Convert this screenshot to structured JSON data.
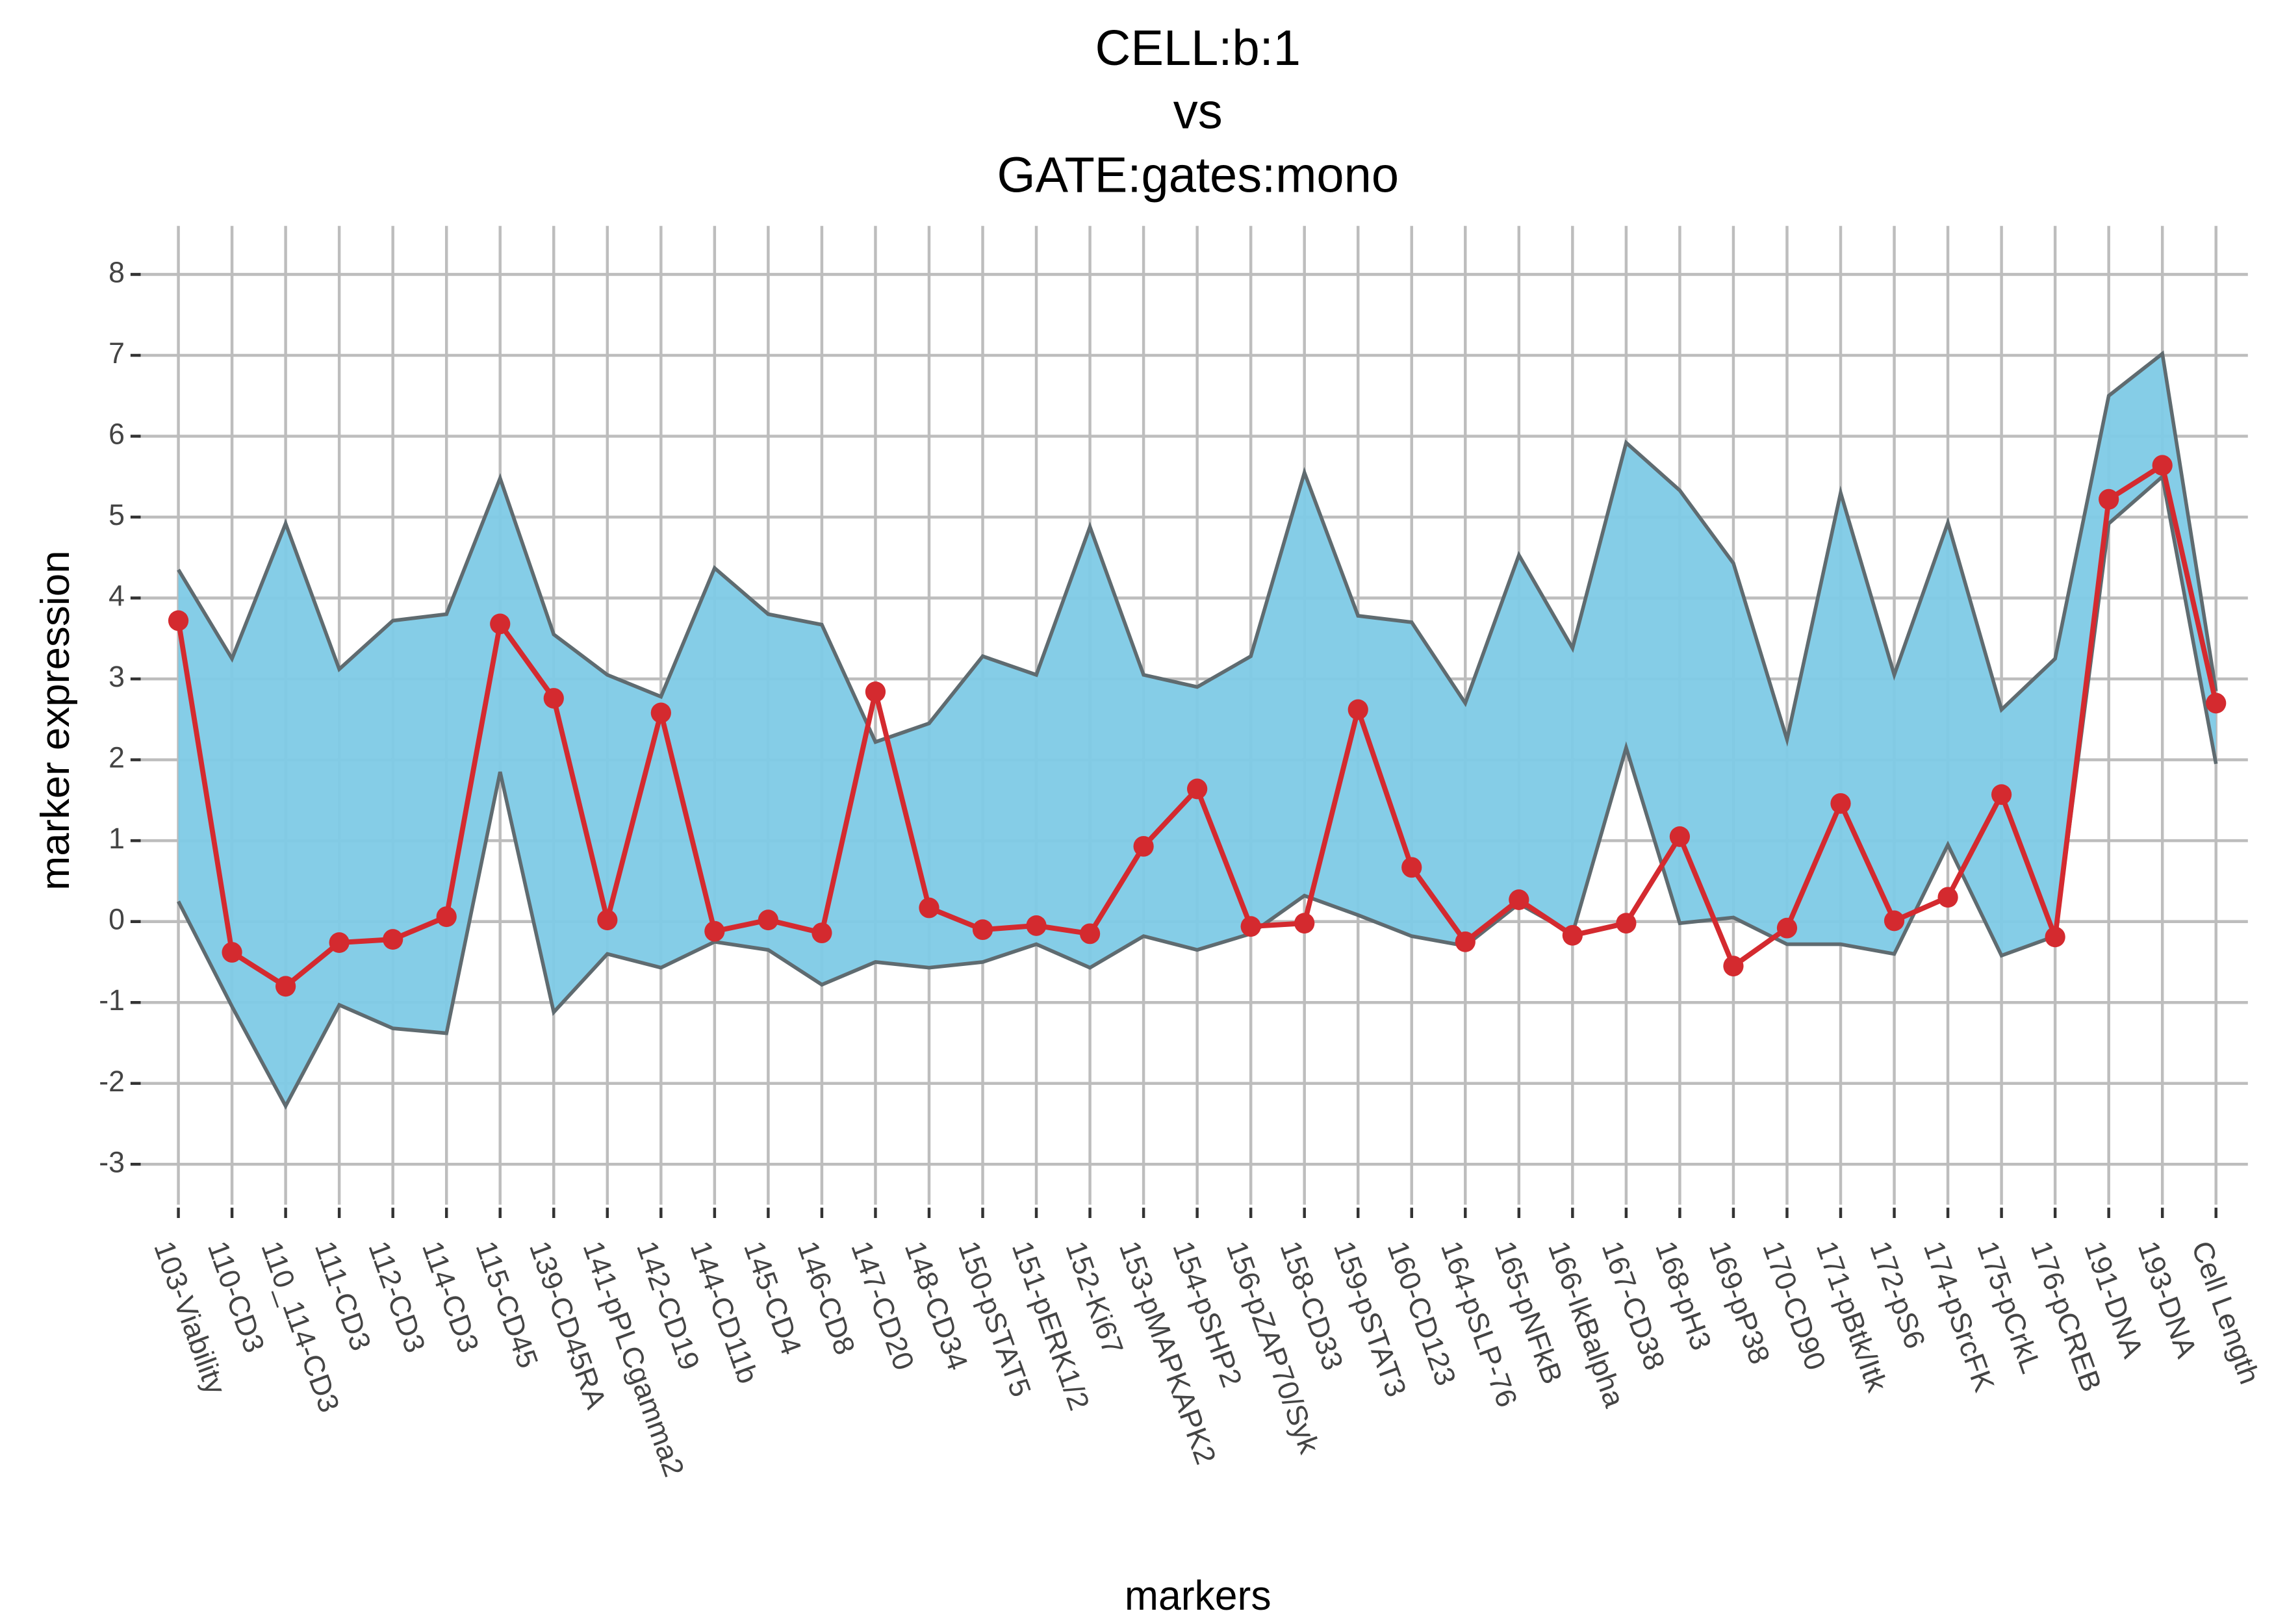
{
  "chart_data": {
    "type": "line",
    "title": [
      "CELL:b:1",
      "vs",
      "GATE:gates:mono"
    ],
    "xlabel": "markers",
    "ylabel": "marker expression",
    "categories": [
      "103-Viability",
      "110-CD3",
      "110_114-CD3",
      "111-CD3",
      "112-CD3",
      "114-CD3",
      "115-CD45",
      "139-CD45RA",
      "141-pPLCgamma2",
      "142-CD19",
      "144-CD11b",
      "145-CD4",
      "146-CD8",
      "147-CD20",
      "148-CD34",
      "150-pSTAT5",
      "151-pERK1/2",
      "152-Ki67",
      "153-pMAPKAPK2",
      "154-pSHP2",
      "156-pZAP70/Syk",
      "158-CD33",
      "159-pSTAT3",
      "160-CD123",
      "164-pSLP-76",
      "165-pNFkB",
      "166-IkBalpha",
      "167-CD38",
      "168-pH3",
      "169-pP38",
      "170-CD90",
      "171-pBtk/Itk",
      "172-pS6",
      "174-pSrcFK",
      "175-pCrkL",
      "176-pCREB",
      "191-DNA",
      "193-DNA",
      "Cell Length"
    ],
    "ribbon": {
      "color": "#7ecae6",
      "outline": "#5f6b70",
      "upper": [
        4.35,
        3.25,
        4.92,
        3.12,
        3.72,
        3.8,
        5.48,
        3.55,
        3.05,
        2.78,
        4.37,
        3.8,
        3.67,
        2.22,
        2.45,
        3.28,
        3.05,
        4.88,
        3.05,
        2.9,
        3.28,
        5.55,
        3.78,
        3.7,
        2.7,
        4.53,
        3.38,
        5.92,
        5.33,
        4.43,
        2.25,
        5.3,
        3.05,
        4.93,
        2.62,
        3.25,
        6.5,
        7.02,
        2.85
      ],
      "lower": [
        0.25,
        -1.05,
        -2.28,
        -1.03,
        -1.32,
        -1.38,
        1.85,
        -1.12,
        -0.4,
        -0.57,
        -0.25,
        -0.35,
        -0.78,
        -0.5,
        -0.57,
        -0.5,
        -0.28,
        -0.57,
        -0.18,
        -0.35,
        -0.15,
        0.32,
        0.08,
        -0.18,
        -0.3,
        0.22,
        -0.15,
        2.15,
        -0.02,
        0.05,
        -0.28,
        -0.28,
        -0.4,
        0.95,
        -0.42,
        -0.18,
        4.92,
        5.5,
        1.95
      ]
    },
    "series": [
      {
        "color": "#d42a2f",
        "values": [
          3.72,
          -0.38,
          -0.8,
          -0.26,
          -0.22,
          0.06,
          3.68,
          2.76,
          0.02,
          2.58,
          -0.12,
          0.02,
          -0.14,
          2.84,
          0.17,
          -0.1,
          -0.05,
          -0.15,
          0.93,
          1.64,
          -0.06,
          -0.02,
          2.62,
          0.67,
          -0.25,
          0.27,
          -0.17,
          -0.02,
          1.05,
          -0.55,
          -0.08,
          1.46,
          0.01,
          0.3,
          1.57,
          -0.19,
          5.22,
          5.64,
          2.7
        ]
      }
    ],
    "ylim": [
      -3.5,
      8.6
    ],
    "yticks": [
      -3,
      -2,
      -1,
      0,
      1,
      2,
      3,
      4,
      5,
      6,
      7,
      8
    ],
    "grid": true
  }
}
